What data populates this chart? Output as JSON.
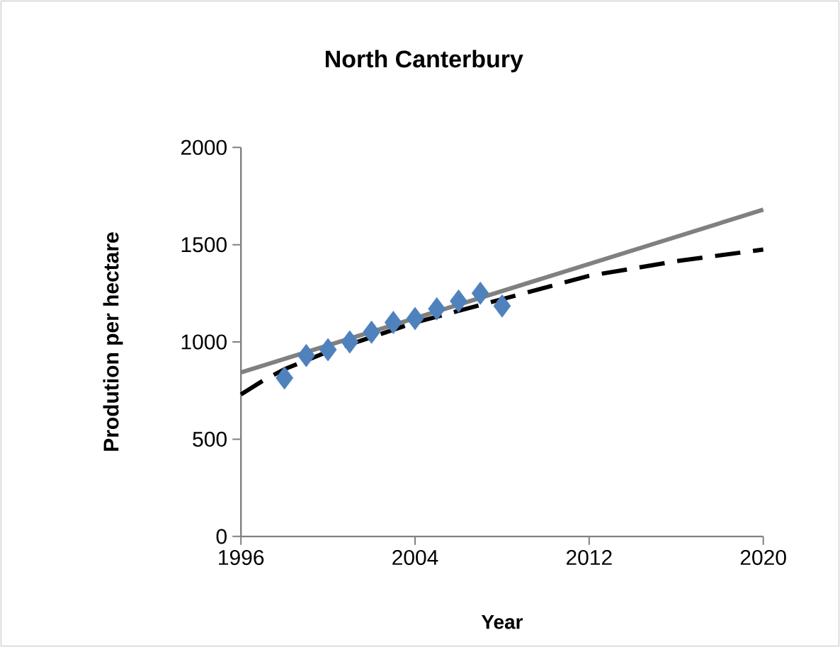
{
  "chart_data": {
    "type": "scatter",
    "title": "North Canterbury",
    "xlabel": "Year",
    "ylabel": "Prodution per hectare",
    "xlim": [
      1996,
      2020
    ],
    "xticks": [
      1996,
      2004,
      2012,
      2020
    ],
    "ylim": [
      0,
      2000
    ],
    "yticks": [
      0,
      500,
      1000,
      1500,
      2000
    ],
    "grid": false,
    "series": [
      {
        "type": "line",
        "color": "#808080",
        "line_style": "solid",
        "marker": "none",
        "x": [
          1996,
          2020
        ],
        "values": [
          843,
          1680
        ]
      },
      {
        "type": "line",
        "color": "#000000",
        "line_style": "dashed",
        "marker": "none",
        "x": [
          1996,
          1997,
          1998,
          2000,
          2004,
          2008,
          2012,
          2016,
          2020
        ],
        "values": [
          730,
          800,
          860,
          950,
          1100,
          1220,
          1340,
          1415,
          1475
        ]
      },
      {
        "color": "#4f81bd",
        "marker": "diamond",
        "x": [
          1998,
          1999,
          2000,
          2001,
          2002,
          2003,
          2004,
          2005,
          2006,
          2007,
          2008
        ],
        "values": [
          815,
          930,
          960,
          1000,
          1050,
          1100,
          1120,
          1170,
          1210,
          1250,
          1185
        ]
      }
    ]
  }
}
